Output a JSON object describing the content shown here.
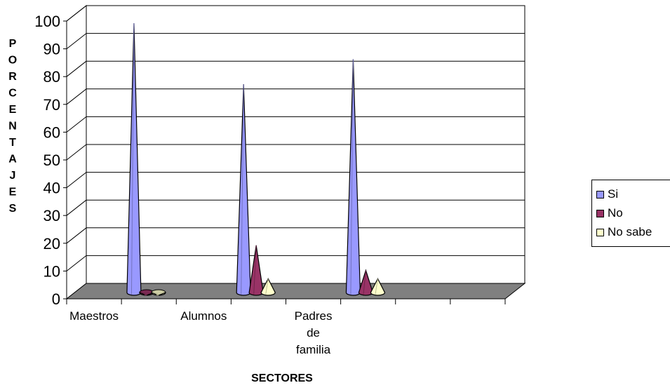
{
  "chart_data": {
    "type": "bar",
    "style": "3d-cone",
    "categories": [
      "Maestros",
      "Alumnos",
      "Padres de familia"
    ],
    "series": [
      {
        "name": "Si",
        "color": "#9999FF",
        "values": [
          99,
          77,
          86
        ]
      },
      {
        "name": "No",
        "color": "#993366",
        "values": [
          1,
          19,
          10
        ]
      },
      {
        "name": "No sabe",
        "color": "#FFFFCC",
        "values": [
          1,
          7,
          7
        ]
      }
    ],
    "title": "",
    "xlabel": "SECTORES",
    "ylabel": "PORCENTAJES",
    "ylim": [
      0,
      100
    ],
    "yticks": [
      0,
      10,
      20,
      30,
      40,
      50,
      60,
      70,
      80,
      90,
      100
    ],
    "grid": true,
    "legend_position": "right",
    "floor_color": "#808080"
  }
}
